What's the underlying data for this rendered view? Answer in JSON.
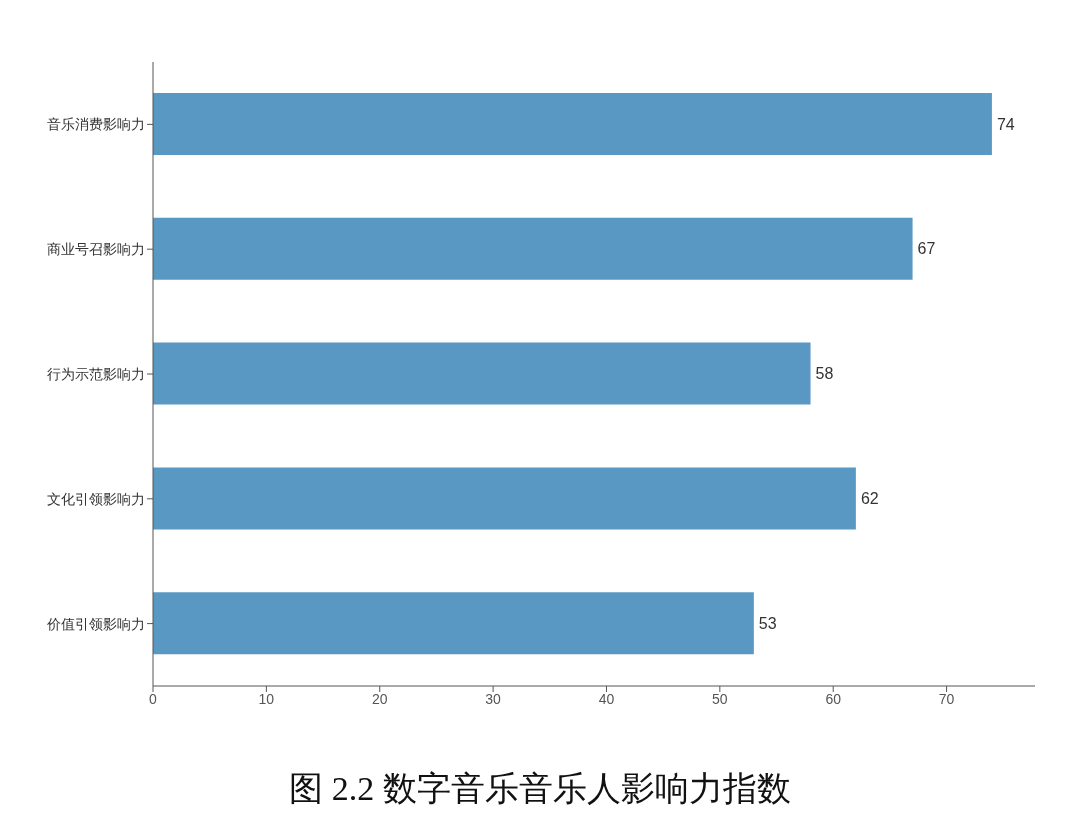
{
  "chart_data": {
    "type": "bar",
    "orientation": "horizontal",
    "title": "图 2.2 数字音乐音乐人影响力指数",
    "categories": [
      "音乐消费影响力",
      "商业号召影响力",
      "行为示范影响力",
      "文化引领影响力",
      "价值引领影响力"
    ],
    "values": [
      74,
      67,
      58,
      62,
      53
    ],
    "color": "#5a98c4",
    "xlim": [
      0,
      77.8
    ],
    "xticks": [
      0,
      10,
      20,
      30,
      40,
      50,
      60,
      70
    ],
    "grid": false,
    "legend": false,
    "data_labels": true
  }
}
